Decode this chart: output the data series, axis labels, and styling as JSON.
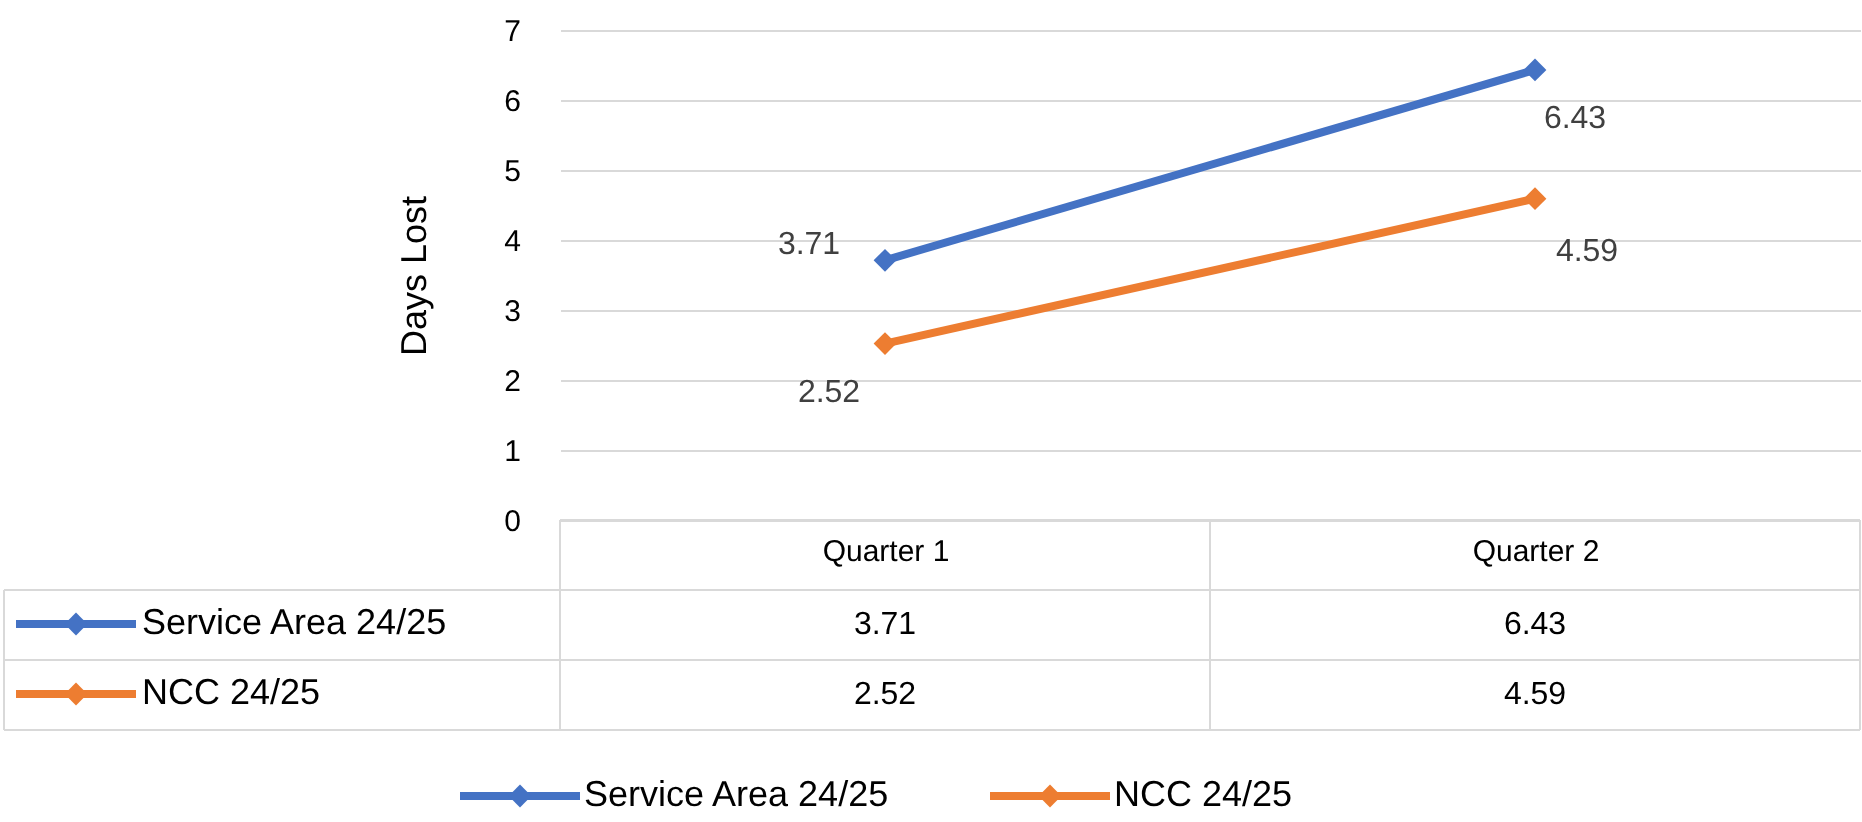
{
  "chart_data": {
    "type": "line",
    "ylabel": "Days Lost",
    "categories": [
      "Quarter 1",
      "Quarter 2"
    ],
    "series": [
      {
        "name": "Service Area 24/25",
        "color": "#4472c4",
        "values": [
          3.71,
          6.43
        ]
      },
      {
        "name": "NCC 24/25",
        "color": "#ed7d31",
        "values": [
          2.52,
          4.59
        ]
      }
    ],
    "annotations": [
      {
        "text": "3.71",
        "x": "Quarter 1",
        "y": 3.71
      },
      {
        "text": "6.43",
        "x": "Quarter 2",
        "y": 6.43
      },
      {
        "text": "2.52",
        "x": "Quarter 1",
        "y": 2.52
      },
      {
        "text": "4.59",
        "x": "Quarter 2",
        "y": 4.59
      }
    ],
    "ylim": [
      0,
      7
    ],
    "yticks": [
      0,
      1,
      2,
      3,
      4,
      5,
      6,
      7
    ],
    "grid": "y",
    "legend": "bottom",
    "marker": "diamond",
    "line_style": "solid",
    "data_labels": true
  }
}
